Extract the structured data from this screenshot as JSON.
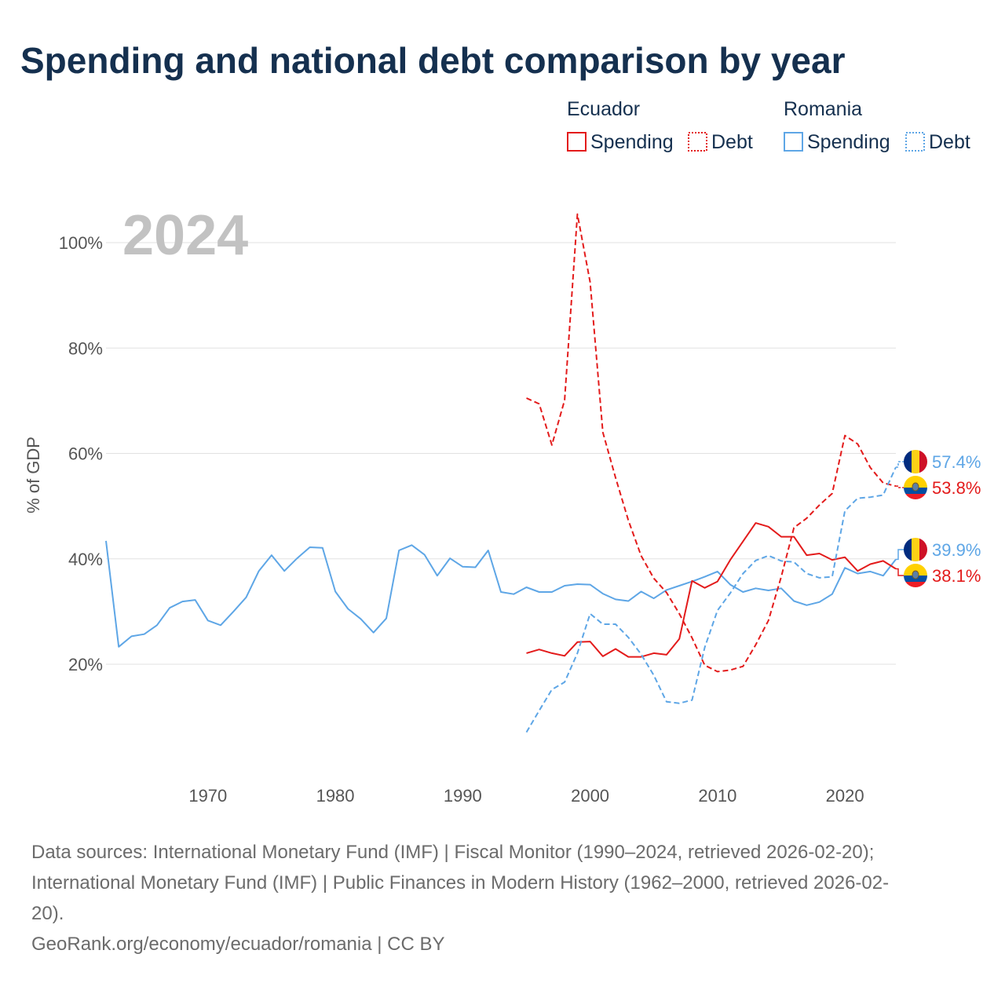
{
  "colors": {
    "ecuador": "#e31b1b",
    "romania": "#5ea6e6"
  },
  "source_lines": [
    "Data sources: International Monetary Fund (IMF) | Fiscal Monitor (1990–2024, retrieved 2026-02-20);",
    "International Monetary Fund (IMF) | Public Finances in Modern History (1962–2000, retrieved 2026-02-",
    "20).",
    "GeoRank.org/economy/ecuador/romania | CC BY"
  ],
  "chart_data": {
    "type": "line",
    "title": "Spending and national debt comparison by year",
    "ylabel": "% of GDP",
    "xlabel": "",
    "year_label": "2024",
    "xlim": [
      1962,
      2024
    ],
    "ylim": [
      0,
      110
    ],
    "x_ticks": [
      1970,
      1980,
      1990,
      2000,
      2010,
      2020
    ],
    "y_ticks": [
      20,
      40,
      60,
      80,
      100
    ],
    "y_tick_labels": [
      "20%",
      "40%",
      "60%",
      "80%",
      "100%"
    ],
    "legend": [
      {
        "group": "Ecuador",
        "items": [
          {
            "label": "Spending",
            "color": "#e31b1b",
            "style": "solid"
          },
          {
            "label": "Debt",
            "color": "#e31b1b",
            "style": "dotted"
          }
        ]
      },
      {
        "group": "Romania",
        "items": [
          {
            "label": "Spending",
            "color": "#5ea6e6",
            "style": "solid"
          },
          {
            "label": "Debt",
            "color": "#5ea6e6",
            "style": "dotted"
          }
        ]
      }
    ],
    "series": [
      {
        "name": "Romania Spending",
        "country": "Romania",
        "color": "#5ea6e6",
        "dash": false,
        "start": 1962,
        "end_label": "39.9%",
        "values": [
          43.4,
          23.3,
          25.3,
          25.7,
          27.4,
          30.7,
          31.9,
          32.2,
          28.3,
          27.4,
          30.0,
          32.7,
          37.7,
          40.7,
          37.7,
          40.1,
          42.2,
          42.1,
          33.8,
          30.5,
          28.6,
          26.0,
          28.7,
          41.6,
          42.6,
          40.8,
          36.8,
          40.1,
          38.5,
          38.4,
          41.6,
          33.7,
          33.3,
          34.6,
          33.7,
          33.7,
          34.9,
          35.2,
          35.1,
          33.4,
          32.3,
          32.0,
          33.8,
          32.5,
          34.1,
          34.9,
          35.7,
          36.6,
          37.6,
          35.1,
          33.7,
          34.4,
          34.0,
          34.4,
          32.0,
          31.2,
          31.8,
          33.3,
          38.3,
          37.2,
          37.6,
          36.8,
          39.9
        ]
      },
      {
        "name": "Ecuador Spending",
        "country": "Ecuador",
        "color": "#e31b1b",
        "dash": false,
        "start": 1995,
        "end_label": "38.1%",
        "values": [
          22.1,
          22.8,
          22.1,
          21.6,
          24.2,
          24.3,
          21.5,
          22.9,
          21.4,
          21.4,
          22.1,
          21.8,
          24.8,
          35.8,
          34.5,
          35.7,
          39.8,
          43.3,
          46.8,
          46.1,
          44.2,
          44.2,
          40.7,
          41.0,
          39.8,
          40.3,
          37.7,
          39.0,
          39.6,
          38.1
        ]
      },
      {
        "name": "Ecuador Debt",
        "country": "Ecuador",
        "color": "#e31b1b",
        "dash": true,
        "start": 1995,
        "end_label": "53.8%",
        "values": [
          70.5,
          69.4,
          61.6,
          70.1,
          105.4,
          92.5,
          64.0,
          55.4,
          47.3,
          40.6,
          36.3,
          33.6,
          29.6,
          25.0,
          19.8,
          18.6,
          18.9,
          19.6,
          23.7,
          28.3,
          36.6,
          45.9,
          47.7,
          50.2,
          52.4,
          63.4,
          61.8,
          57.3,
          54.4,
          53.8
        ]
      },
      {
        "name": "Romania Debt",
        "country": "Romania",
        "color": "#5ea6e6",
        "dash": true,
        "start": 1995,
        "end_label": "57.4%",
        "values": [
          7.1,
          11.2,
          15.2,
          16.6,
          22.1,
          29.6,
          27.6,
          27.6,
          25.1,
          21.9,
          17.9,
          12.9,
          12.6,
          13.2,
          23.2,
          30.2,
          33.5,
          37.2,
          39.7,
          40.6,
          39.6,
          39.4,
          37.2,
          36.4,
          36.6,
          49.1,
          51.5,
          51.7,
          52.1,
          57.4
        ]
      }
    ]
  }
}
